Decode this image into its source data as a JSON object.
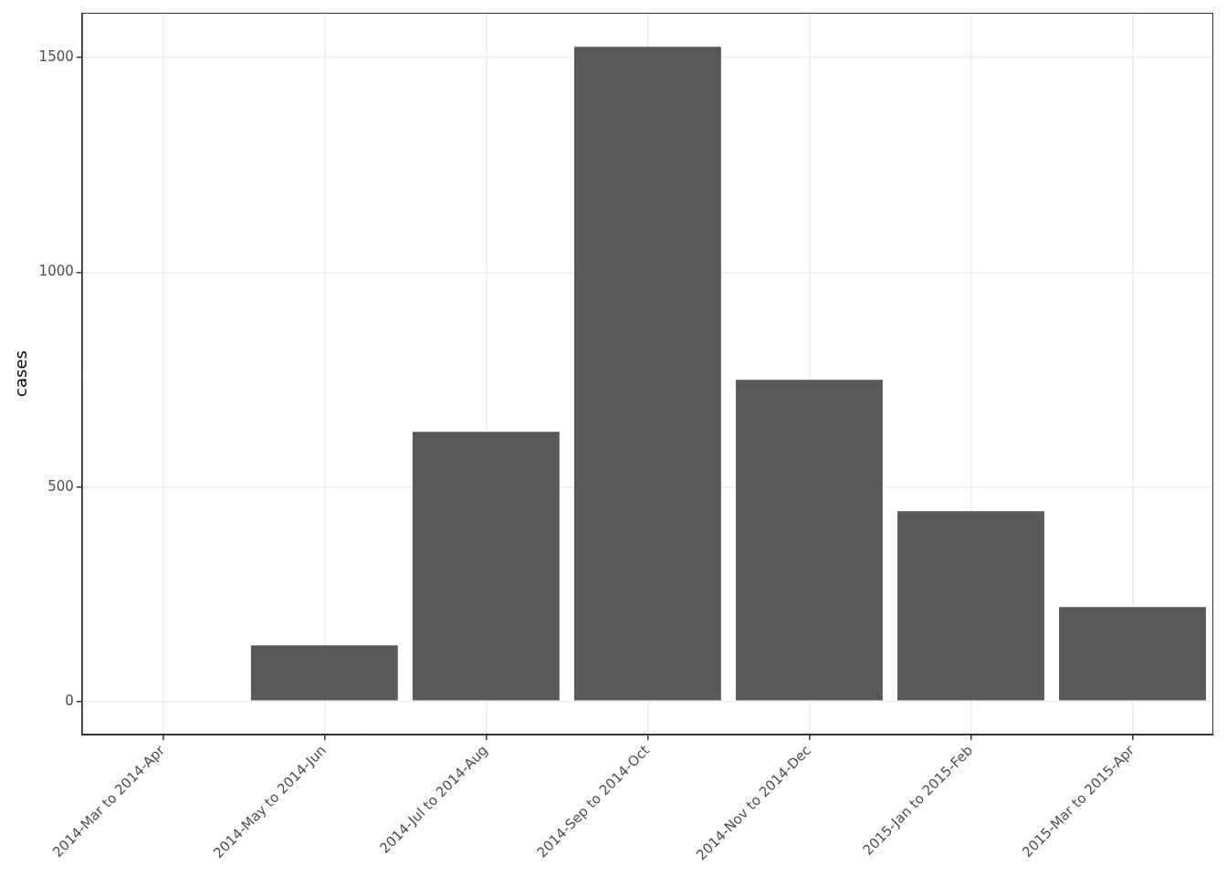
{
  "chart_data": {
    "type": "bar",
    "y_label": "cases",
    "categories": [
      "2014-Mar to 2014-Apr",
      "2014-May to 2014-Jun",
      "2014-Jul to 2014-Aug",
      "2014-Sep to 2014-Oct",
      "2014-Nov to 2014-Dec",
      "2015-Jan to 2015-Feb",
      "2015-Mar to 2015-Apr"
    ],
    "values": [
      0,
      134,
      631,
      1527,
      752,
      446,
      223
    ],
    "color": "#595959",
    "ylim": [
      -76,
      1604
    ],
    "yticks": [
      0,
      500,
      1000,
      1500
    ],
    "grid": true
  }
}
